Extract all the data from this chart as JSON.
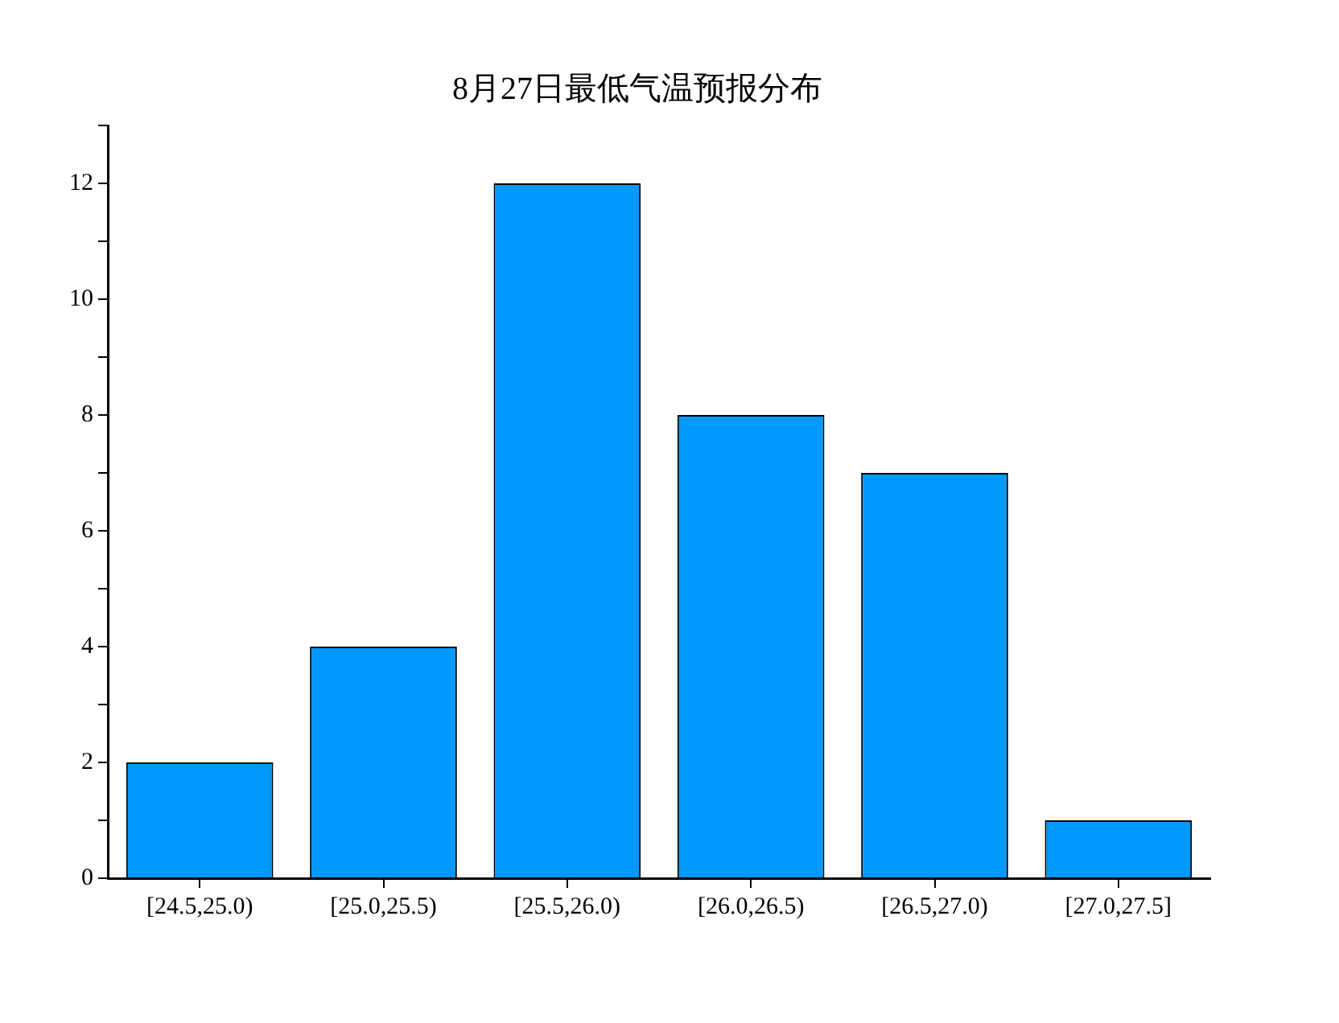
{
  "chart_data": {
    "type": "bar",
    "title": "8月27日最低气温预报分布",
    "categories": [
      "[24.5,25.0)",
      "[25.0,25.5)",
      "[25.5,26.0)",
      "[26.0,26.5)",
      "[26.5,27.0)",
      "[27.0,27.5]"
    ],
    "values": [
      2,
      4,
      12,
      8,
      7,
      1
    ],
    "color": "#0099ff",
    "ylim": [
      0,
      13
    ],
    "yticks": [
      0,
      {
        "value": 1,
        "label": null
      },
      2,
      {
        "value": 3,
        "label": null
      },
      4,
      {
        "value": 5,
        "label": null
      },
      6,
      {
        "value": 7,
        "label": null
      },
      8,
      {
        "value": 9,
        "label": null
      },
      10,
      {
        "value": 11,
        "label": null
      },
      12,
      {
        "value": 13,
        "label": null
      }
    ],
    "grid": false,
    "legend": false
  }
}
